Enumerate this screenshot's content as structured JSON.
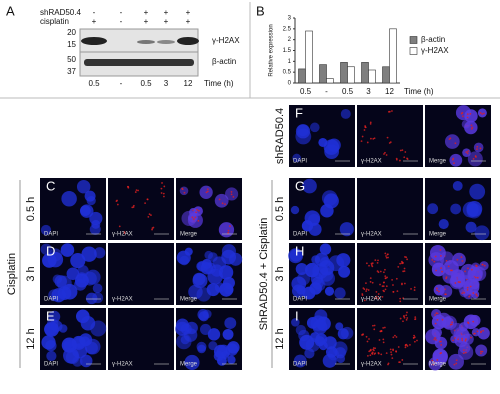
{
  "blot": {
    "letter": "A",
    "rows": [
      {
        "label": "shRAD50.4",
        "signs": [
          "-",
          "-",
          "+",
          "+",
          "+"
        ]
      },
      {
        "label": "cisplatin",
        "signs": [
          "+",
          "-",
          "+",
          "+",
          "+"
        ]
      }
    ],
    "markers": [
      "20",
      "15",
      "50",
      "37"
    ],
    "bands": [
      "γ-H2AX",
      "β-actin"
    ],
    "lanes": [
      "0.5",
      "-",
      "0.5",
      "3",
      "12"
    ],
    "time_label": "Time (h)"
  },
  "chart_data": {
    "type": "bar",
    "letter": "B",
    "y_label": "Relative expression",
    "categories": [
      "0.5",
      "-",
      "0.5",
      "3",
      "12"
    ],
    "x_label": "Time (h)",
    "series": [
      {
        "name": "β-actin",
        "color": "#7f7f7f",
        "values": [
          0.65,
          0.85,
          0.95,
          0.95,
          0.75
        ]
      },
      {
        "name": "γ-H2AX",
        "color": "#ffffff",
        "values": [
          2.4,
          0.2,
          0.75,
          0.6,
          2.5
        ]
      }
    ],
    "ylim": [
      0,
      3
    ],
    "yticks": [
      0,
      0.5,
      1,
      1.5,
      2,
      2.5,
      3
    ]
  },
  "micro_left": {
    "group_label": "Cisplatin",
    "panels": [
      {
        "letter": "C",
        "row_label": "0.5 h",
        "channels": [
          "DAPI",
          "γ-H2AX",
          "Merge"
        ]
      },
      {
        "letter": "D",
        "row_label": "3 h",
        "channels": [
          "DAPI",
          "γ-H2AX",
          "Merge"
        ]
      },
      {
        "letter": "E",
        "row_label": "12 h",
        "channels": [
          "DAPI",
          "γ-H2AX",
          "Merge"
        ]
      }
    ]
  },
  "micro_right": {
    "group_label": "ShRAD50.4 + Cisplatin",
    "panels": [
      {
        "letter": "F",
        "row_label": "shRAD50.4",
        "channels": [
          "DAPI",
          "γ-H2AX",
          "Merge"
        ]
      },
      {
        "letter": "G",
        "row_label": "0.5 h",
        "channels": [
          "DAPI",
          "γ-H2AX",
          "Merge"
        ]
      },
      {
        "letter": "H",
        "row_label": "3 h",
        "channels": [
          "DAPI",
          "γ-H2AX",
          "Merge"
        ]
      },
      {
        "letter": "I",
        "row_label": "12 h",
        "channels": [
          "DAPI",
          "γ-H2AX",
          "Merge"
        ]
      }
    ]
  }
}
